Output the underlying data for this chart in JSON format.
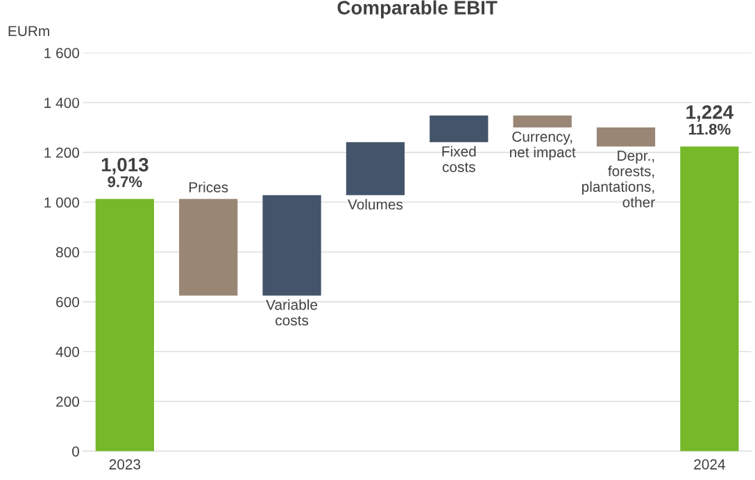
{
  "chart_data": {
    "type": "bar",
    "title": "Comparable EBIT",
    "ylabel": "EURm",
    "categories": [
      "2023",
      "Prices",
      "Variable\ncosts",
      "Volumes",
      "Fixed\ncosts",
      "Currency,\nnet impact",
      "Depr.,\nforests,\nplantations,\nother",
      "2024"
    ],
    "values": [
      1013,
      -388,
      403,
      213,
      107,
      -48,
      -76,
      1224
    ],
    "base": [
      0,
      1013,
      625,
      1028,
      1241,
      1348,
      1300,
      0
    ],
    "colors": [
      "#76b82a",
      "#998675",
      "#44546a",
      "#44546a",
      "#44546a",
      "#998675",
      "#998675",
      "#76b82a"
    ],
    "value_labels": [
      "1,013",
      null,
      null,
      null,
      null,
      null,
      null,
      "1,224"
    ],
    "annotations": [
      {
        "text": "9.7%",
        "x": "2023",
        "y": 1013
      },
      {
        "text": "11.8%",
        "x": "2024",
        "y": 1224
      }
    ],
    "ylim": [
      0,
      1600
    ],
    "yticks": [
      0,
      200,
      400,
      600,
      800,
      {
        "value": 1000,
        "label": "1 000"
      },
      {
        "value": 1200,
        "label": "1 200"
      },
      {
        "value": 1400,
        "label": "1 400"
      },
      {
        "value": 1600,
        "label": "1 600"
      }
    ],
    "grid": "y"
  }
}
